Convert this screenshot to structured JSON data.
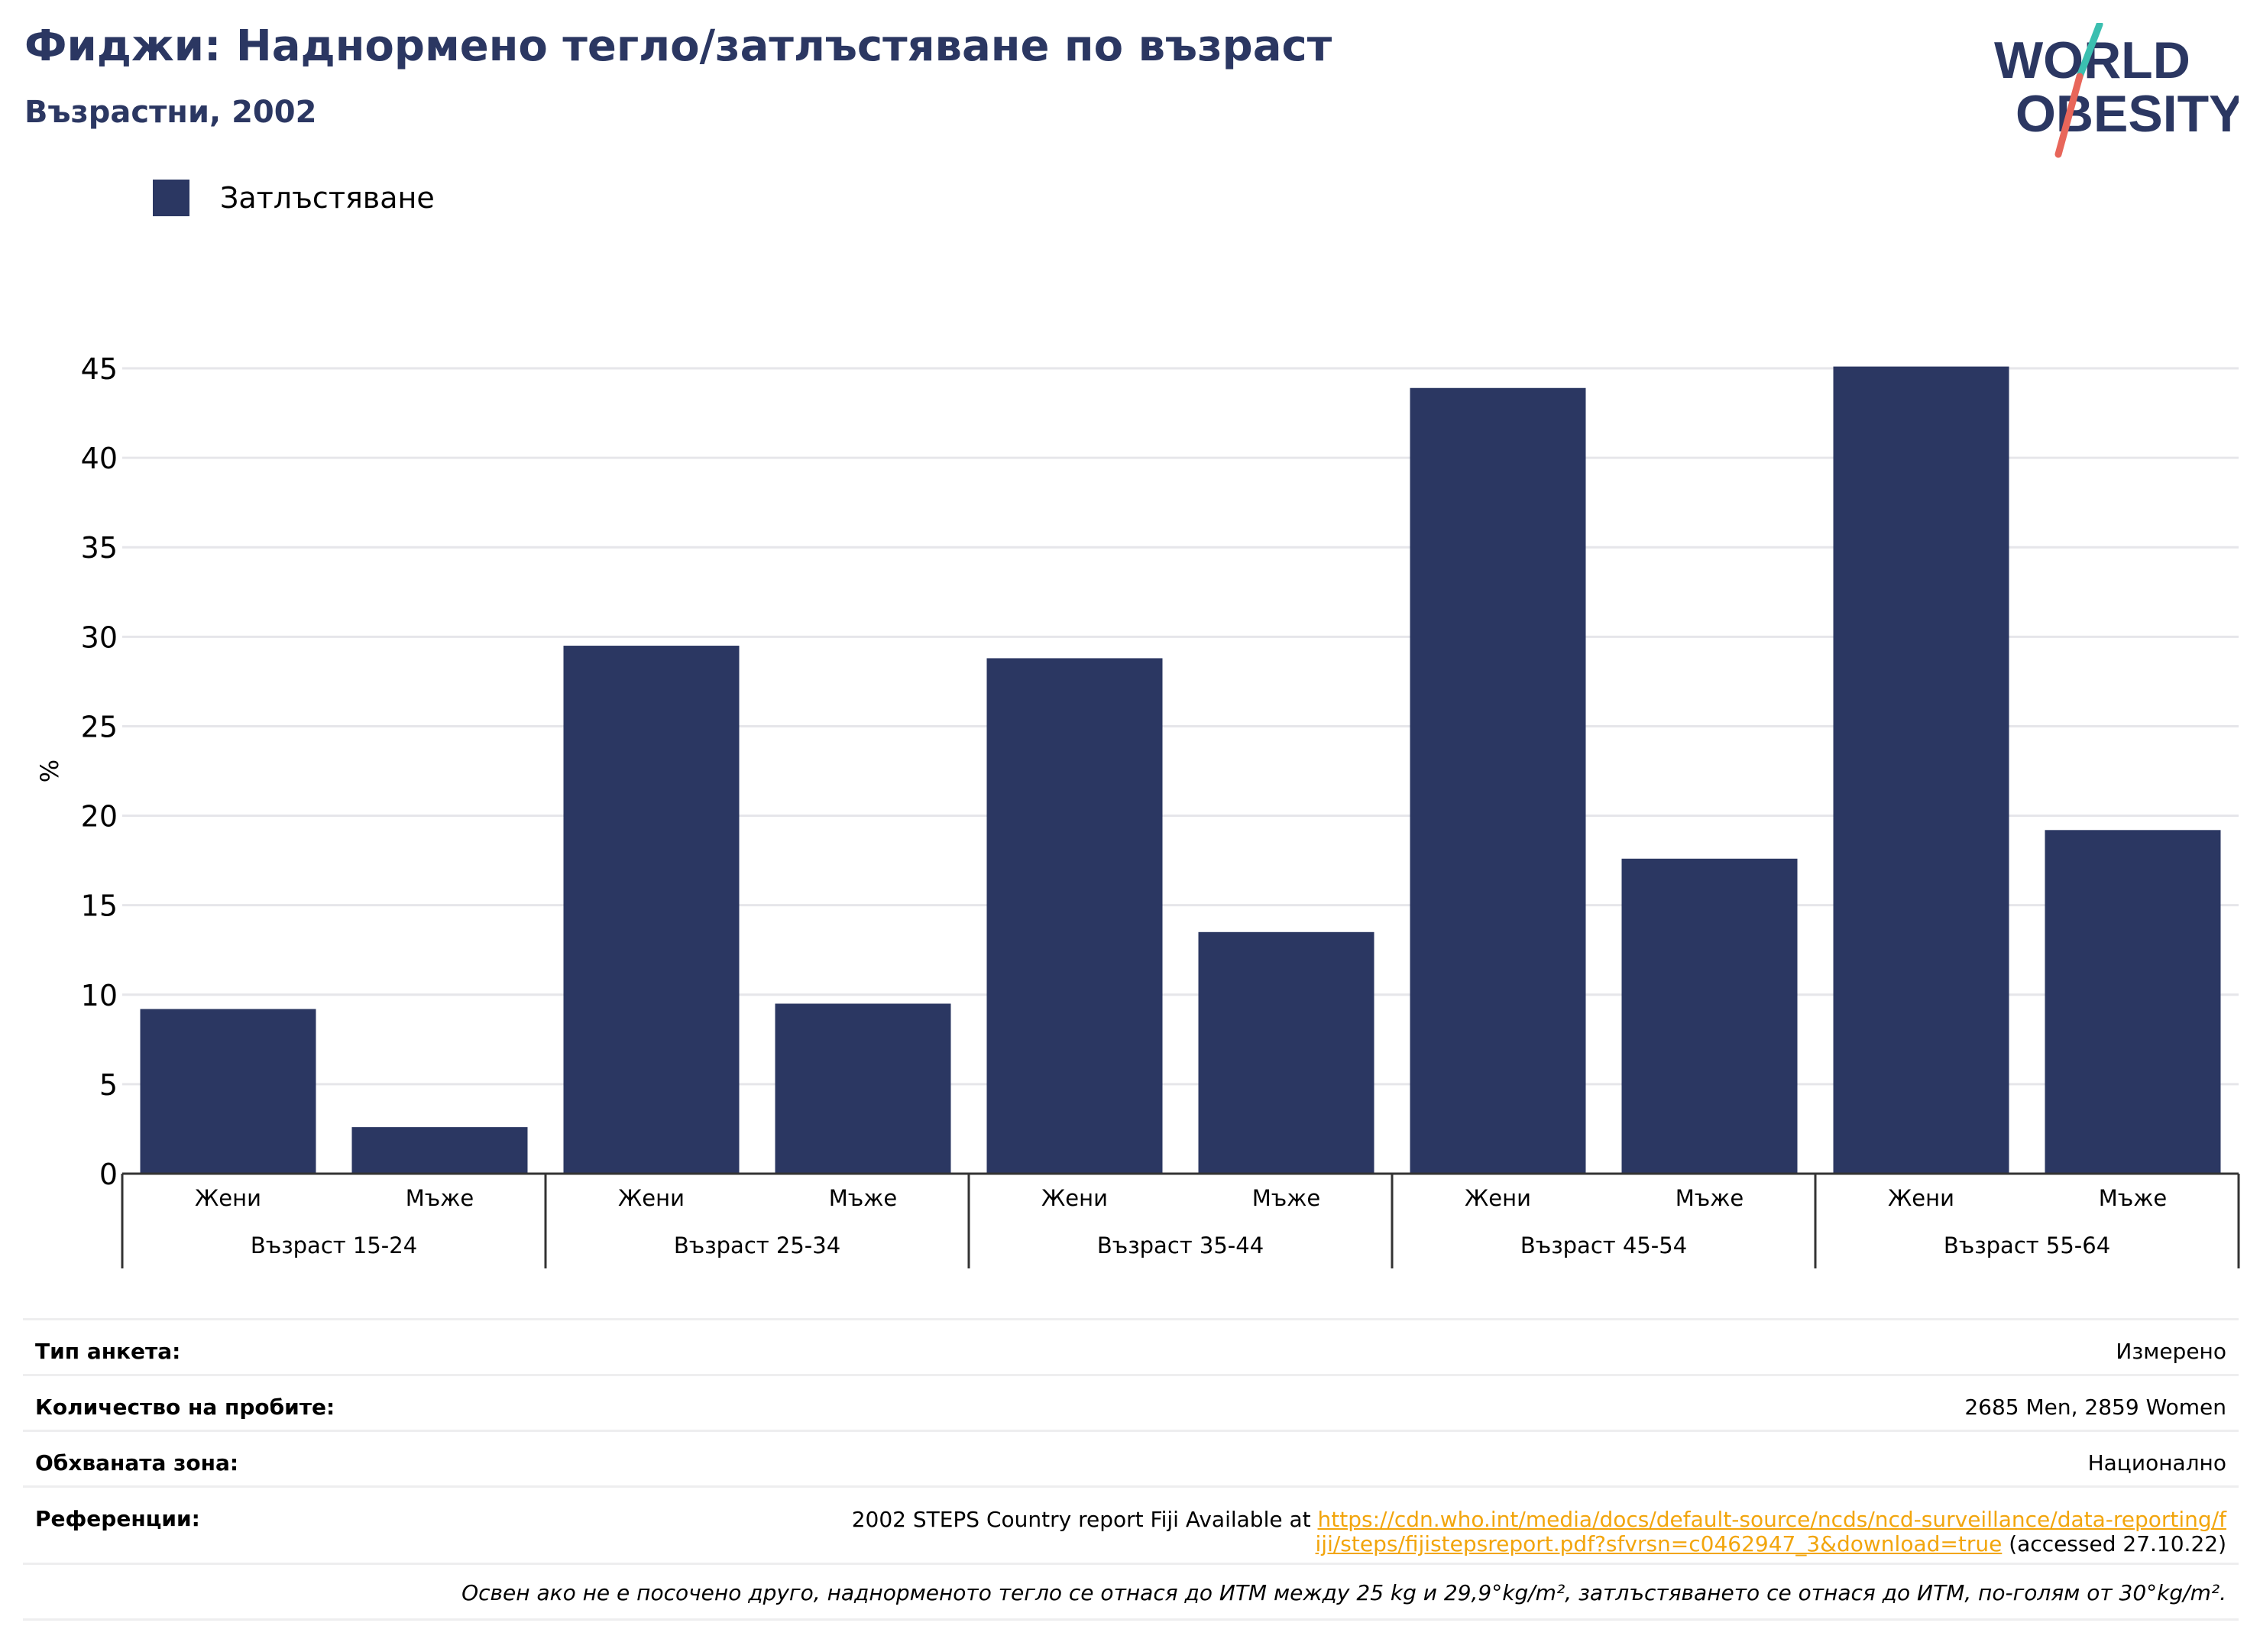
{
  "title": "Фиджи: Наднормено тегло/затлъстяване по възраст",
  "subtitle": "Възрастни, 2002",
  "logo": {
    "line1": "WORLD",
    "line2": "OBESITY",
    "colors": {
      "text": "#2b3762",
      "slash_top": "#3bbfb0",
      "slash_bottom": "#e8665a"
    }
  },
  "legend": [
    {
      "label": "Затлъстяване",
      "color": "#2b3762"
    }
  ],
  "chart_data": {
    "type": "bar",
    "ylabel": "%",
    "ylim": [
      0,
      45
    ],
    "yticks": [
      0,
      5,
      10,
      15,
      20,
      25,
      30,
      35,
      40,
      45
    ],
    "grid": true,
    "groups": [
      {
        "label": "Възраст 15-24",
        "bars": [
          {
            "label": "Жени",
            "value": 9.2
          },
          {
            "label": "Мъже",
            "value": 2.6
          }
        ]
      },
      {
        "label": "Възраст 25-34",
        "bars": [
          {
            "label": "Жени",
            "value": 29.5
          },
          {
            "label": "Мъже",
            "value": 9.5
          }
        ]
      },
      {
        "label": "Възраст 35-44",
        "bars": [
          {
            "label": "Жени",
            "value": 28.8
          },
          {
            "label": "Мъже",
            "value": 13.5
          }
        ]
      },
      {
        "label": "Възраст 45-54",
        "bars": [
          {
            "label": "Жени",
            "value": 43.9
          },
          {
            "label": "Мъже",
            "value": 17.6
          }
        ]
      },
      {
        "label": "Възраст 55-64",
        "bars": [
          {
            "label": "Жени",
            "value": 45.1
          },
          {
            "label": "Мъже",
            "value": 19.2
          }
        ]
      }
    ],
    "bar_color": "#2b3762"
  },
  "info": {
    "survey_type_label": "Тип анкета:",
    "survey_type_value": "Измерено",
    "sample_size_label": "Количество на пробите:",
    "sample_size_value": "2685 Men, 2859 Women",
    "coverage_label": "Обхваната зона:",
    "coverage_value": "Национално",
    "references_label": "Референции:",
    "references_prefix": "2002 STEPS Country report Fiji Available at ",
    "references_link": "https://cdn.who.int/media/docs/default-source/ncds/ncd-surveillance/data-reporting/fiji/steps/fijistepsreport.pdf?sfvrsn=c0462947_3&download=true",
    "references_suffix": " (accessed 27.10.22)",
    "note": "Освен ако не е посочено друго, наднорменото тегло се отнася до ИТМ между 25 kg и 29,9°kg/m², затлъстяването се отнася до ИТМ, по-голям от 30°kg/m²."
  }
}
